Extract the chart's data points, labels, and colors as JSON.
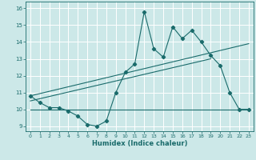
{
  "xlabel": "Humidex (Indice chaleur)",
  "xlim": [
    -0.5,
    23.5
  ],
  "ylim": [
    8.7,
    16.4
  ],
  "yticks": [
    9,
    10,
    11,
    12,
    13,
    14,
    15,
    16
  ],
  "xticks": [
    0,
    1,
    2,
    3,
    4,
    5,
    6,
    7,
    8,
    9,
    10,
    11,
    12,
    13,
    14,
    15,
    16,
    17,
    18,
    19,
    20,
    21,
    22,
    23
  ],
  "bg_color": "#cce8e8",
  "line_color": "#1a6b6b",
  "grid_color": "#ffffff",
  "main_series_x": [
    0,
    1,
    2,
    3,
    4,
    5,
    6,
    7,
    8,
    9,
    10,
    11,
    12,
    13,
    14,
    15,
    16,
    17,
    18,
    19,
    20,
    21,
    22,
    23
  ],
  "main_series_y": [
    10.8,
    10.4,
    10.1,
    10.1,
    9.9,
    9.6,
    9.1,
    9.0,
    9.3,
    11.0,
    12.2,
    12.7,
    15.8,
    13.6,
    13.1,
    14.9,
    14.2,
    14.7,
    14.0,
    13.2,
    12.6,
    11.0,
    10.0,
    10.0
  ],
  "flat_series_x": [
    0,
    19,
    23
  ],
  "flat_series_y": [
    10.0,
    10.0,
    10.0
  ],
  "trend1_x": [
    0,
    23
  ],
  "trend1_y": [
    10.8,
    13.9
  ],
  "trend2_x": [
    0,
    19
  ],
  "trend2_y": [
    10.5,
    13.0
  ]
}
